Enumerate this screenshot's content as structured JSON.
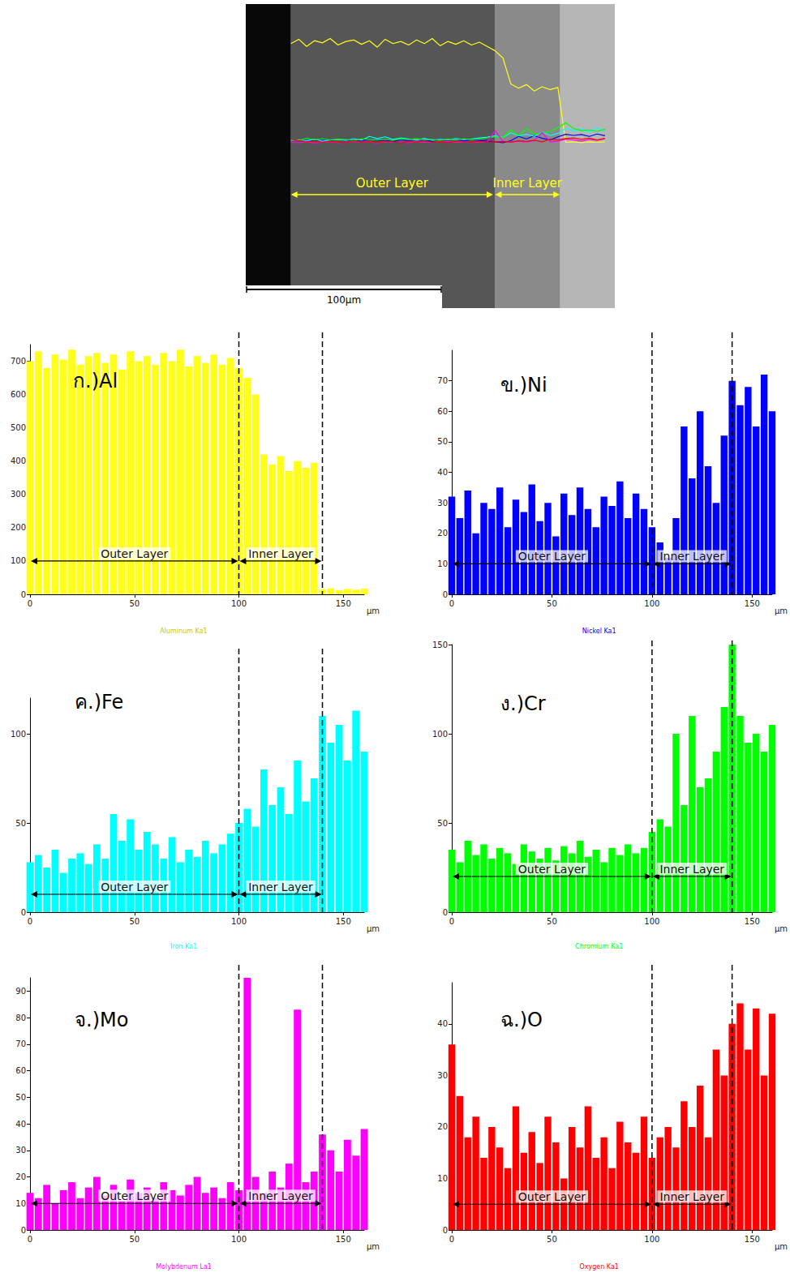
{
  "chart_data": [
    {
      "type": "line",
      "tick_labels": false,
      "x": [
        0,
        4,
        8,
        12,
        16,
        20,
        24,
        28,
        32,
        36,
        40,
        44,
        48,
        52,
        56,
        60,
        64,
        68,
        72,
        76,
        80,
        84,
        88,
        92,
        96,
        100,
        104,
        108,
        112,
        116,
        120,
        124,
        128,
        132,
        136,
        140,
        144,
        148,
        152,
        156,
        160
      ],
      "xlim": [
        -23,
        165
      ],
      "ylim": [
        0,
        800
      ],
      "series": [
        {
          "color": "#ffff1a",
          "values": [
            700,
            730,
            680,
            720,
            705,
            735,
            690,
            715,
            725,
            695,
            720,
            675,
            730,
            700,
            715,
            690,
            725,
            700,
            735,
            685,
            715,
            695,
            720,
            690,
            710,
            680,
            650,
            600,
            420,
            390,
            415,
            370,
            400,
            380,
            395,
            15,
            18,
            12,
            16,
            14,
            17
          ]
        },
        {
          "color": "#0000ff",
          "values": [
            32,
            25,
            34,
            20,
            30,
            28,
            35,
            22,
            31,
            27,
            36,
            24,
            30,
            19,
            33,
            26,
            35,
            28,
            22,
            32,
            29,
            37,
            25,
            33,
            28,
            22,
            17,
            12,
            25,
            55,
            38,
            60,
            42,
            30,
            52,
            70,
            62,
            68,
            55,
            72,
            60
          ]
        },
        {
          "color": "#00ffff",
          "values": [
            28,
            32,
            25,
            35,
            22,
            30,
            33,
            27,
            38,
            30,
            55,
            40,
            52,
            35,
            45,
            38,
            30,
            42,
            28,
            35,
            31,
            40,
            33,
            38,
            44,
            50,
            58,
            48,
            80,
            60,
            70,
            55,
            85,
            62,
            75,
            110,
            95,
            105,
            85,
            113,
            90
          ]
        },
        {
          "color": "#00ff00",
          "values": [
            35,
            28,
            40,
            32,
            38,
            30,
            36,
            33,
            27,
            38,
            34,
            30,
            36,
            29,
            37,
            33,
            40,
            31,
            35,
            28,
            36,
            32,
            38,
            33,
            36,
            45,
            52,
            48,
            100,
            60,
            110,
            70,
            75,
            90,
            115,
            150,
            110,
            95,
            100,
            90,
            105
          ]
        },
        {
          "color": "#ff00ff",
          "values": [
            14,
            12,
            17,
            10,
            15,
            18,
            12,
            16,
            20,
            13,
            17,
            11,
            19,
            14,
            16,
            12,
            18,
            15,
            13,
            17,
            20,
            14,
            16,
            12,
            18,
            15,
            95,
            20,
            14,
            22,
            16,
            25,
            83,
            18,
            22,
            36,
            30,
            22,
            34,
            28,
            38
          ]
        },
        {
          "color": "#ff0000",
          "values": [
            36,
            26,
            18,
            22,
            14,
            20,
            16,
            12,
            24,
            15,
            19,
            13,
            22,
            17,
            10,
            20,
            16,
            24,
            14,
            18,
            12,
            21,
            17,
            15,
            22,
            14,
            18,
            20,
            16,
            25,
            20,
            28,
            18,
            35,
            30,
            40,
            44,
            35,
            43,
            30,
            42
          ]
        }
      ],
      "annotations": [
        {
          "text": "Outer Layer",
          "from": 0,
          "to": 103
        },
        {
          "text": "Inner Layer",
          "from": 104,
          "to": 137
        },
        {
          "text": "100μm",
          "length": 100
        }
      ]
    },
    {
      "type": "bar",
      "title": "ก.)Al",
      "subtitle": "Aluminum Ka1",
      "xlabel": "μm",
      "color": "#ffff1a",
      "x": [
        0,
        4,
        8,
        12,
        16,
        20,
        24,
        28,
        32,
        36,
        40,
        44,
        48,
        52,
        56,
        60,
        64,
        68,
        72,
        76,
        80,
        84,
        88,
        92,
        96,
        100,
        104,
        108,
        112,
        116,
        120,
        124,
        128,
        132,
        136,
        140,
        144,
        148,
        152,
        156,
        160
      ],
      "values": [
        700,
        730,
        680,
        720,
        705,
        735,
        690,
        715,
        725,
        695,
        720,
        675,
        730,
        700,
        715,
        690,
        725,
        700,
        735,
        685,
        715,
        695,
        720,
        690,
        710,
        680,
        650,
        600,
        420,
        390,
        415,
        370,
        400,
        380,
        395,
        15,
        18,
        12,
        16,
        14,
        17
      ],
      "xlim": [
        0,
        160
      ],
      "xticks": [
        0,
        50,
        100,
        150
      ],
      "ylim": [
        0,
        750
      ],
      "yticks": [
        0,
        100,
        200,
        300,
        400,
        500,
        600,
        700
      ],
      "annotations": [
        {
          "text": "Outer Layer",
          "from": 0,
          "to": 100,
          "y": 100
        },
        {
          "text": "Inner Layer",
          "from": 100,
          "to": 140,
          "y": 100
        }
      ]
    },
    {
      "type": "bar",
      "title": "ข.)Ni",
      "subtitle": "Nickel Ka1",
      "xlabel": "μm",
      "color": "#0000ff",
      "x": [
        0,
        4,
        8,
        12,
        16,
        20,
        24,
        28,
        32,
        36,
        40,
        44,
        48,
        52,
        56,
        60,
        64,
        68,
        72,
        76,
        80,
        84,
        88,
        92,
        96,
        100,
        104,
        108,
        112,
        116,
        120,
        124,
        128,
        132,
        136,
        140,
        144,
        148,
        152,
        156,
        160
      ],
      "values": [
        32,
        25,
        34,
        20,
        30,
        28,
        35,
        22,
        31,
        27,
        36,
        24,
        30,
        19,
        33,
        26,
        35,
        28,
        22,
        32,
        29,
        37,
        25,
        33,
        28,
        22,
        17,
        12,
        25,
        55,
        38,
        60,
        42,
        30,
        52,
        70,
        62,
        68,
        55,
        72,
        60
      ],
      "xlim": [
        0,
        160
      ],
      "xticks": [
        0,
        50,
        100,
        150
      ],
      "ylim": [
        0,
        80
      ],
      "yticks": [
        0,
        10,
        20,
        30,
        40,
        50,
        60,
        70
      ],
      "annotations": [
        {
          "text": "Outer Layer",
          "from": 0,
          "to": 100,
          "y": 10
        },
        {
          "text": "Inner Layer",
          "from": 100,
          "to": 140,
          "y": 10
        }
      ]
    },
    {
      "type": "bar",
      "title": "ค.)Fe",
      "subtitle": "Iron Ka1",
      "xlabel": "μm",
      "color": "#00ffff",
      "x": [
        0,
        4,
        8,
        12,
        16,
        20,
        24,
        28,
        32,
        36,
        40,
        44,
        48,
        52,
        56,
        60,
        64,
        68,
        72,
        76,
        80,
        84,
        88,
        92,
        96,
        100,
        104,
        108,
        112,
        116,
        120,
        124,
        128,
        132,
        136,
        140,
        144,
        148,
        152,
        156,
        160
      ],
      "values": [
        28,
        32,
        25,
        35,
        22,
        30,
        33,
        27,
        38,
        30,
        55,
        40,
        52,
        35,
        45,
        38,
        30,
        42,
        28,
        35,
        31,
        40,
        33,
        38,
        44,
        50,
        58,
        48,
        80,
        60,
        70,
        55,
        85,
        62,
        75,
        110,
        95,
        105,
        85,
        113,
        90
      ],
      "xlim": [
        0,
        160
      ],
      "xticks": [
        0,
        50,
        100,
        150
      ],
      "ylim": [
        0,
        120
      ],
      "yticks": [
        0,
        50,
        100
      ],
      "annotations": [
        {
          "text": "Outer Layer",
          "from": 0,
          "to": 100,
          "y": 10
        },
        {
          "text": "Inner Layer",
          "from": 100,
          "to": 140,
          "y": 10
        }
      ]
    },
    {
      "type": "bar",
      "title": "ง.)Cr",
      "subtitle": "Chromium Ka1",
      "xlabel": "μm",
      "color": "#00ff00",
      "x": [
        0,
        4,
        8,
        12,
        16,
        20,
        24,
        28,
        32,
        36,
        40,
        44,
        48,
        52,
        56,
        60,
        64,
        68,
        72,
        76,
        80,
        84,
        88,
        92,
        96,
        100,
        104,
        108,
        112,
        116,
        120,
        124,
        128,
        132,
        136,
        140,
        144,
        148,
        152,
        156,
        160
      ],
      "values": [
        35,
        28,
        40,
        32,
        38,
        30,
        36,
        33,
        27,
        38,
        34,
        30,
        36,
        29,
        37,
        33,
        40,
        31,
        35,
        28,
        36,
        32,
        38,
        33,
        36,
        45,
        52,
        48,
        100,
        60,
        110,
        70,
        75,
        90,
        115,
        150,
        110,
        95,
        100,
        90,
        105
      ],
      "xlim": [
        0,
        160
      ],
      "xticks": [
        0,
        50,
        100,
        150
      ],
      "ylim": [
        0,
        150
      ],
      "yticks": [
        0,
        50,
        100,
        150
      ],
      "annotations": [
        {
          "text": "Outer Layer",
          "from": 0,
          "to": 100,
          "y": 20
        },
        {
          "text": "Inner Layer",
          "from": 100,
          "to": 140,
          "y": 20
        }
      ]
    },
    {
      "type": "bar",
      "title": "จ.)Mo",
      "subtitle": "Molybdenum La1",
      "xlabel": "μm",
      "color": "#ff00ff",
      "x": [
        0,
        4,
        8,
        12,
        16,
        20,
        24,
        28,
        32,
        36,
        40,
        44,
        48,
        52,
        56,
        60,
        64,
        68,
        72,
        76,
        80,
        84,
        88,
        92,
        96,
        100,
        104,
        108,
        112,
        116,
        120,
        124,
        128,
        132,
        136,
        140,
        144,
        148,
        152,
        156,
        160
      ],
      "values": [
        14,
        12,
        17,
        10,
        15,
        18,
        12,
        16,
        20,
        13,
        17,
        11,
        19,
        14,
        16,
        12,
        18,
        15,
        13,
        17,
        20,
        14,
        16,
        12,
        18,
        15,
        95,
        20,
        14,
        22,
        16,
        25,
        83,
        18,
        22,
        36,
        30,
        22,
        34,
        28,
        38
      ],
      "xlim": [
        0,
        160
      ],
      "xticks": [
        0,
        50,
        100,
        150
      ],
      "ylim": [
        0,
        95
      ],
      "yticks": [
        0,
        10,
        20,
        30,
        40,
        50,
        60,
        70,
        80,
        90
      ],
      "annotations": [
        {
          "text": "Outer Layer",
          "from": 0,
          "to": 100,
          "y": 10
        },
        {
          "text": "Inner Layer",
          "from": 100,
          "to": 140,
          "y": 10
        }
      ]
    },
    {
      "type": "bar",
      "title": "ฉ.)O",
      "subtitle": "Oxygen Ka1",
      "xlabel": "μm",
      "color": "#ff0000",
      "x": [
        0,
        4,
        8,
        12,
        16,
        20,
        24,
        28,
        32,
        36,
        40,
        44,
        48,
        52,
        56,
        60,
        64,
        68,
        72,
        76,
        80,
        84,
        88,
        92,
        96,
        100,
        104,
        108,
        112,
        116,
        120,
        124,
        128,
        132,
        136,
        140,
        144,
        148,
        152,
        156,
        160
      ],
      "values": [
        36,
        26,
        18,
        22,
        14,
        20,
        16,
        12,
        24,
        15,
        19,
        13,
        22,
        17,
        10,
        20,
        16,
        24,
        14,
        18,
        12,
        21,
        17,
        15,
        22,
        14,
        18,
        20,
        16,
        25,
        20,
        28,
        18,
        35,
        30,
        40,
        44,
        35,
        43,
        30,
        42
      ],
      "xlim": [
        0,
        160
      ],
      "xticks": [
        0,
        50,
        100,
        150
      ],
      "ylim": [
        0,
        48
      ],
      "yticks": [
        0,
        10,
        20,
        30,
        40
      ],
      "annotations": [
        {
          "text": "Outer Layer",
          "from": 0,
          "to": 100,
          "y": 5
        },
        {
          "text": "Inner Layer",
          "from": 100,
          "to": 140,
          "y": 5
        }
      ]
    }
  ]
}
